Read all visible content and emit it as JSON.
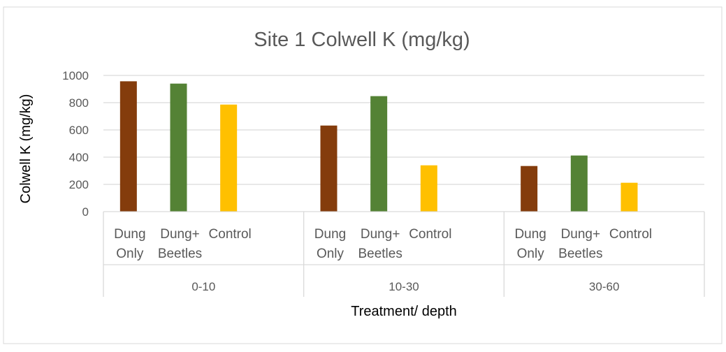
{
  "chart_data": {
    "type": "bar",
    "title": "Site 1 Colwell K (mg/kg)",
    "xlabel": "Treatment/ depth",
    "ylabel": "Colwell K (mg/kg)",
    "ylim": [
      0,
      1000
    ],
    "yticks": [
      "0",
      "200",
      "400",
      "600",
      "800",
      "1000"
    ],
    "grid": true,
    "legend": "none",
    "groups": [
      {
        "label": "0-10",
        "categories": [
          [
            "Dung",
            "Only"
          ],
          [
            "Dung+",
            "Beetles"
          ],
          [
            "Control"
          ]
        ],
        "values": [
          957,
          940,
          786
        ]
      },
      {
        "label": "10-30",
        "categories": [
          [
            "Dung",
            "Only"
          ],
          [
            "Dung+",
            "Beetles"
          ],
          [
            "Control"
          ]
        ],
        "values": [
          632,
          848,
          340
        ]
      },
      {
        "label": "30-60",
        "categories": [
          [
            "Dung",
            "Only"
          ],
          [
            "Dung+",
            "Beetles"
          ],
          [
            "Control"
          ]
        ],
        "values": [
          335,
          412,
          212
        ]
      }
    ],
    "colors": [
      "#843C0C",
      "#548235",
      "#FFC000"
    ]
  }
}
